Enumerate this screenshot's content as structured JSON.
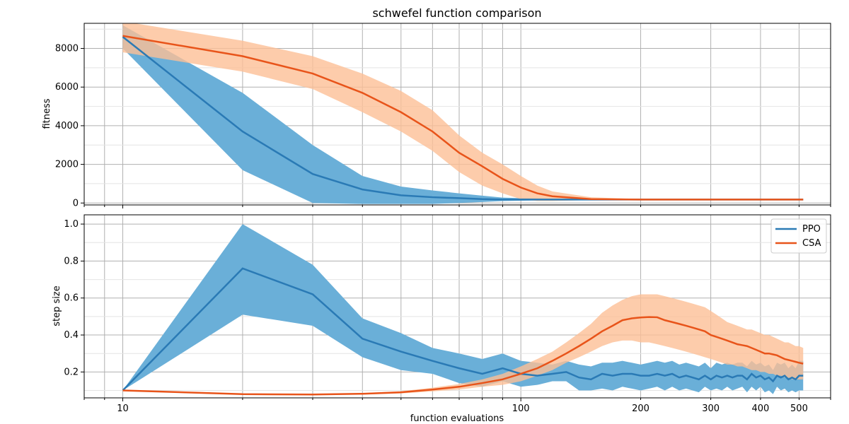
{
  "chart_data": {
    "type": "line",
    "title": "schwefel function comparison",
    "xlabel": "function evaluations",
    "xscale": "log",
    "xlim": [
      8,
      600
    ],
    "x_ticks_major": [
      10,
      100
    ],
    "x_ticks_minor_labeled": [
      200,
      300,
      400,
      500
    ],
    "colors": {
      "PPO": "#2a7ab5",
      "CSA": "#e8541a",
      "PPO_band": "#6aafd8",
      "CSA_band": "#fdbf96"
    },
    "legend": {
      "placement": "upper-right",
      "entries": [
        "PPO",
        "CSA"
      ]
    },
    "grid": true,
    "panels": [
      {
        "ylabel": "fitness",
        "ylim": [
          -100,
          9300
        ],
        "yticks": [
          0,
          2000,
          4000,
          6000,
          8000
        ],
        "series": [
          {
            "name": "PPO",
            "x": [
              10,
              20,
              30,
              40,
              50,
              60,
              70,
              80,
              90,
              100,
              120,
              150,
              200,
              300,
              400,
              512
            ],
            "mean": [
              8600,
              3700,
              1500,
              700,
              400,
              300,
              250,
              200,
              180,
              180,
              180,
              180,
              180,
              180,
              180,
              180
            ],
            "lower": [
              8000,
              1700,
              0,
              -50,
              -50,
              -50,
              0,
              50,
              100,
              120,
              150,
              170,
              175,
              175,
              175,
              175
            ],
            "upper": [
              9200,
              5700,
              3000,
              1400,
              850,
              650,
              500,
              380,
              280,
              250,
              220,
              200,
              190,
              190,
              190,
              190
            ]
          },
          {
            "name": "CSA",
            "x": [
              10,
              20,
              30,
              40,
              50,
              60,
              70,
              80,
              90,
              100,
              110,
              120,
              150,
              200,
              300,
              400,
              512
            ],
            "mean": [
              8650,
              7600,
              6700,
              5700,
              4700,
              3700,
              2600,
              1900,
              1250,
              800,
              500,
              350,
              200,
              180,
              180,
              180,
              180
            ],
            "lower": [
              7800,
              6800,
              5900,
              4700,
              3700,
              2700,
              1600,
              900,
              500,
              200,
              100,
              100,
              150,
              170,
              170,
              170,
              170
            ],
            "upper": [
              9400,
              8400,
              7600,
              6700,
              5800,
              4800,
              3500,
              2600,
              2000,
              1400,
              900,
              600,
              300,
              200,
              190,
              190,
              190
            ]
          }
        ]
      },
      {
        "ylabel": "step size",
        "ylim": [
          0.06,
          1.05
        ],
        "yticks": [
          0.2,
          0.4,
          0.6,
          0.8,
          1.0
        ],
        "ytick_labels": [
          "0.2",
          "0.4",
          "0.6",
          "0.8",
          "1.0"
        ],
        "series": [
          {
            "name": "PPO",
            "x": [
              10,
              20,
              30,
              40,
              50,
              60,
              70,
              80,
              90,
              100,
              110,
              120,
              130,
              140,
              150,
              160,
              170,
              180,
              190,
              200,
              210,
              220,
              230,
              240,
              250,
              260,
              270,
              280,
              290,
              300,
              310,
              320,
              330,
              340,
              350,
              360,
              370,
              380,
              390,
              400,
              410,
              420,
              430,
              440,
              450,
              460,
              470,
              480,
              490,
              500,
              512
            ],
            "mean": [
              0.1,
              0.76,
              0.62,
              0.38,
              0.31,
              0.26,
              0.22,
              0.19,
              0.22,
              0.19,
              0.18,
              0.19,
              0.2,
              0.17,
              0.16,
              0.19,
              0.18,
              0.19,
              0.19,
              0.18,
              0.18,
              0.19,
              0.18,
              0.19,
              0.17,
              0.18,
              0.17,
              0.16,
              0.18,
              0.16,
              0.18,
              0.17,
              0.18,
              0.17,
              0.18,
              0.18,
              0.16,
              0.19,
              0.17,
              0.18,
              0.16,
              0.17,
              0.15,
              0.18,
              0.17,
              0.18,
              0.16,
              0.17,
              0.16,
              0.18,
              0.18
            ],
            "lower": [
              0.1,
              0.51,
              0.45,
              0.28,
              0.21,
              0.19,
              0.14,
              0.12,
              0.15,
              0.12,
              0.13,
              0.15,
              0.15,
              0.1,
              0.1,
              0.11,
              0.1,
              0.12,
              0.11,
              0.1,
              0.11,
              0.12,
              0.1,
              0.12,
              0.1,
              0.11,
              0.1,
              0.09,
              0.12,
              0.1,
              0.11,
              0.1,
              0.12,
              0.1,
              0.11,
              0.12,
              0.09,
              0.12,
              0.1,
              0.12,
              0.09,
              0.1,
              0.08,
              0.12,
              0.1,
              0.11,
              0.09,
              0.1,
              0.09,
              0.1,
              0.1
            ],
            "upper": [
              0.1,
              1.0,
              0.78,
              0.49,
              0.41,
              0.33,
              0.3,
              0.27,
              0.3,
              0.26,
              0.25,
              0.24,
              0.26,
              0.24,
              0.23,
              0.25,
              0.25,
              0.26,
              0.25,
              0.24,
              0.25,
              0.26,
              0.25,
              0.26,
              0.24,
              0.25,
              0.24,
              0.23,
              0.25,
              0.22,
              0.25,
              0.24,
              0.25,
              0.24,
              0.25,
              0.25,
              0.23,
              0.26,
              0.24,
              0.25,
              0.23,
              0.24,
              0.21,
              0.25,
              0.24,
              0.25,
              0.22,
              0.24,
              0.22,
              0.26,
              0.26
            ]
          },
          {
            "name": "CSA",
            "x": [
              10,
              20,
              30,
              40,
              50,
              60,
              70,
              80,
              90,
              100,
              110,
              120,
              130,
              140,
              150,
              160,
              170,
              180,
              190,
              200,
              210,
              220,
              230,
              240,
              250,
              260,
              270,
              280,
              290,
              300,
              310,
              320,
              330,
              340,
              350,
              360,
              370,
              380,
              390,
              400,
              410,
              420,
              430,
              440,
              450,
              460,
              470,
              480,
              490,
              500,
              512
            ],
            "mean": [
              0.1,
              0.08,
              0.078,
              0.082,
              0.09,
              0.105,
              0.12,
              0.14,
              0.16,
              0.19,
              0.22,
              0.26,
              0.3,
              0.34,
              0.38,
              0.42,
              0.45,
              0.48,
              0.49,
              0.495,
              0.497,
              0.496,
              0.48,
              0.47,
              0.46,
              0.45,
              0.44,
              0.43,
              0.42,
              0.4,
              0.39,
              0.38,
              0.37,
              0.36,
              0.35,
              0.345,
              0.34,
              0.33,
              0.32,
              0.31,
              0.3,
              0.3,
              0.295,
              0.29,
              0.28,
              0.27,
              0.265,
              0.26,
              0.255,
              0.25,
              0.245
            ],
            "lower": [
              0.1,
              0.08,
              0.076,
              0.078,
              0.084,
              0.095,
              0.105,
              0.12,
              0.13,
              0.15,
              0.18,
              0.21,
              0.25,
              0.28,
              0.31,
              0.34,
              0.36,
              0.37,
              0.37,
              0.36,
              0.36,
              0.35,
              0.34,
              0.33,
              0.32,
              0.31,
              0.3,
              0.29,
              0.28,
              0.27,
              0.26,
              0.25,
              0.24,
              0.24,
              0.23,
              0.23,
              0.22,
              0.21,
              0.21,
              0.2,
              0.2,
              0.19,
              0.19,
              0.18,
              0.18,
              0.17,
              0.17,
              0.16,
              0.16,
              0.16,
              0.16
            ],
            "upper": [
              0.1,
              0.081,
              0.08,
              0.086,
              0.096,
              0.115,
              0.135,
              0.16,
              0.19,
              0.23,
              0.27,
              0.31,
              0.36,
              0.41,
              0.46,
              0.52,
              0.56,
              0.59,
              0.61,
              0.62,
              0.62,
              0.62,
              0.61,
              0.6,
              0.59,
              0.58,
              0.57,
              0.56,
              0.55,
              0.53,
              0.51,
              0.49,
              0.47,
              0.46,
              0.45,
              0.44,
              0.43,
              0.43,
              0.42,
              0.41,
              0.4,
              0.4,
              0.39,
              0.38,
              0.37,
              0.36,
              0.36,
              0.35,
              0.34,
              0.34,
              0.33
            ]
          }
        ]
      }
    ]
  }
}
